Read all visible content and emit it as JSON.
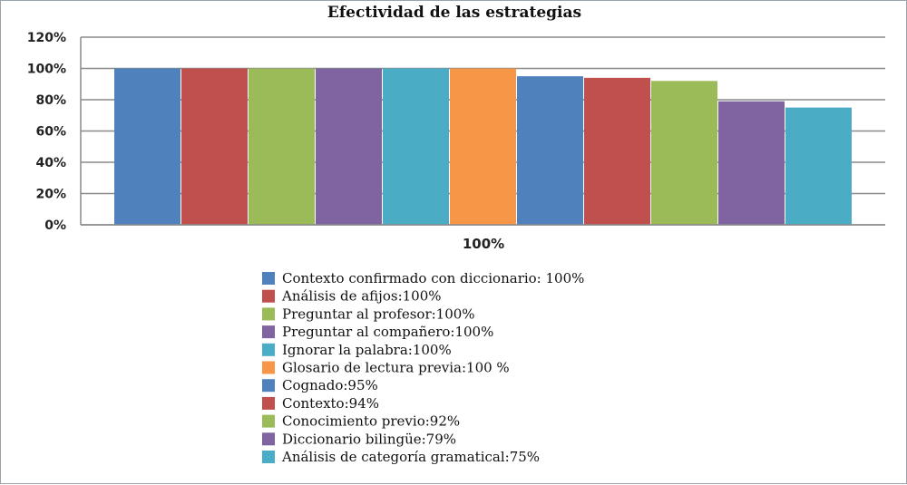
{
  "chart_data": {
    "type": "bar",
    "title": "Efectividad de las estrategias",
    "categories": [
      "100%"
    ],
    "ylim": [
      0,
      120
    ],
    "yticks": [
      "0%",
      "20%",
      "40%",
      "60%",
      "80%",
      "100%",
      "120%"
    ],
    "grid": true,
    "legend_position": "bottom",
    "series": [
      {
        "name": "Contexto confirmado con diccionario: 100%",
        "values": [
          100
        ],
        "color": "#4f81bd"
      },
      {
        "name": "Análisis de afijos:100%",
        "values": [
          100
        ],
        "color": "#c0504d"
      },
      {
        "name": "Preguntar al profesor:100%",
        "values": [
          100
        ],
        "color": "#9bbb59"
      },
      {
        "name": "Preguntar al compañero:100%",
        "values": [
          100
        ],
        "color": "#8064a2"
      },
      {
        "name": "Ignorar la palabra:100%",
        "values": [
          100
        ],
        "color": "#4bacc6"
      },
      {
        "name": "Glosario de lectura previa:100 %",
        "values": [
          100
        ],
        "color": "#f79646"
      },
      {
        "name": "Cognado:95%",
        "values": [
          95
        ],
        "color": "#4f81bd"
      },
      {
        "name": "Contexto:94%",
        "values": [
          94
        ],
        "color": "#c0504d"
      },
      {
        "name": "Conocimiento previo:92%",
        "values": [
          92
        ],
        "color": "#9bbb59"
      },
      {
        "name": "Diccionario bilingüe:79%",
        "values": [
          79
        ],
        "color": "#8064a2"
      },
      {
        "name": "Análisis de categoría gramatical:75%",
        "values": [
          75
        ],
        "color": "#4bacc6"
      }
    ]
  }
}
